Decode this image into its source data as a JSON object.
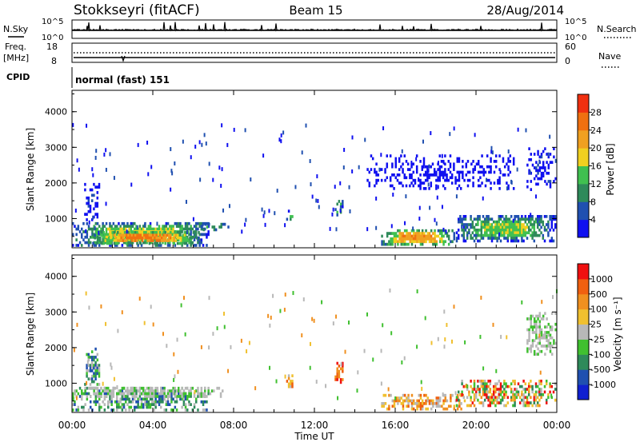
{
  "header": {
    "station": "Stokkseyri (fitACF)",
    "beam": "Beam 15",
    "date": "28/Aug/2014"
  },
  "top_panel": {
    "left_label": "N.Sky",
    "left_top_tick": "10^5",
    "left_bottom_tick": "10^0",
    "right_top_tick": "10^5",
    "right_bottom_tick": "10^0",
    "right_label": "N.Search"
  },
  "freq_panel": {
    "left_label_line1": "Freq.",
    "left_label_line2": "[MHz]",
    "left_top_tick": "18",
    "left_bottom_tick": "8",
    "right_top_tick": "60",
    "right_bottom_tick": "0",
    "right_label": "Nave"
  },
  "cpid_panel": {
    "label": "CPID",
    "mode": "normal (fast) 151"
  },
  "chart_data": [
    {
      "type": "heatmap",
      "name": "power",
      "ylabel": "Slant Range [km]",
      "ylim": [
        180,
        4600
      ],
      "yticks": [
        "1000",
        "2000",
        "3000",
        "4000"
      ],
      "colorbar_label": "Power [dB]",
      "colorbar_ticks": [
        "4",
        "8",
        "12",
        "16",
        "20",
        "24",
        "28"
      ],
      "colorbar_colors": [
        "#1010f0",
        "#2050b0",
        "#2e8a5a",
        "#40c050",
        "#f0d020",
        "#f0a020",
        "#f07010",
        "#f03010"
      ],
      "blobs": [
        {
          "t0": 0.0,
          "t1": 6.8,
          "r0": 250,
          "r1": 900,
          "peak": 20
        },
        {
          "t0": 1.0,
          "t1": 6.3,
          "r0": 300,
          "r1": 650,
          "peak": 28
        },
        {
          "t0": 15.3,
          "t1": 19.0,
          "r0": 260,
          "r1": 700,
          "peak": 26
        },
        {
          "t0": 19.0,
          "t1": 24.0,
          "r0": 300,
          "r1": 1100,
          "peak": 18
        },
        {
          "t0": 0.6,
          "t1": 1.4,
          "r0": 900,
          "r1": 2000,
          "peak": 6
        },
        {
          "t0": 6.3,
          "t1": 7.8,
          "r0": 620,
          "r1": 880,
          "peak": 14
        },
        {
          "t0": 10.6,
          "t1": 11.0,
          "r0": 850,
          "r1": 1250,
          "peak": 14
        },
        {
          "t0": 13.0,
          "t1": 13.4,
          "r0": 1000,
          "r1": 1600,
          "peak": 14
        },
        {
          "t0": 22.5,
          "t1": 24.0,
          "r0": 1800,
          "r1": 3000,
          "peak": 6
        },
        {
          "t0": 14.5,
          "t1": 22.0,
          "r0": 1800,
          "r1": 2800,
          "peak": 4
        }
      ]
    },
    {
      "type": "heatmap",
      "name": "velocity",
      "ylabel": "Slant Range [km]",
      "ylim": [
        180,
        4600
      ],
      "yticks": [
        "1000",
        "2000",
        "3000",
        "4000"
      ],
      "xlabel": "Time UT",
      "xticks": [
        "00:00",
        "04:00",
        "08:00",
        "12:00",
        "16:00",
        "20:00",
        "00:00"
      ],
      "xlim_hours": [
        0,
        24
      ],
      "colorbar_label": "Velocity [m s⁻¹]",
      "colorbar_ticks": [
        "1000",
        "500",
        "100",
        "25",
        "-25",
        "-100",
        "-500",
        "-1000"
      ],
      "colorbar_colors": [
        "#1020d0",
        "#2050b0",
        "#2e8a5a",
        "#40c030",
        "#b8b8b8",
        "#f0c030",
        "#f09020",
        "#f06010",
        "#f01010"
      ],
      "blobs": [
        {
          "t0": 0.0,
          "t1": 6.8,
          "r0": 250,
          "r1": 900,
          "kind": "greens"
        },
        {
          "t0": 0.0,
          "t1": 7.5,
          "r0": 600,
          "r1": 900,
          "kind": "grey"
        },
        {
          "t0": 15.3,
          "t1": 19.5,
          "r0": 260,
          "r1": 700,
          "kind": "oranges"
        },
        {
          "t0": 19.0,
          "t1": 24.0,
          "r0": 300,
          "r1": 1100,
          "kind": "mixed"
        },
        {
          "t0": 10.6,
          "t1": 11.0,
          "r0": 850,
          "r1": 1250,
          "kind": "oranges"
        },
        {
          "t0": 13.0,
          "t1": 13.4,
          "r0": 1000,
          "r1": 1600,
          "kind": "reds"
        },
        {
          "t0": 0.6,
          "t1": 1.4,
          "r0": 900,
          "r1": 2000,
          "kind": "greens"
        },
        {
          "t0": 22.5,
          "t1": 24.0,
          "r0": 1800,
          "r1": 3000,
          "kind": "grey"
        }
      ]
    }
  ]
}
